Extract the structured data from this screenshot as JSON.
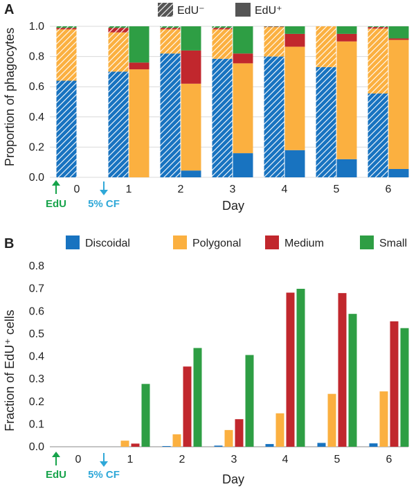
{
  "colors": {
    "discoidal": "#1873c0",
    "polygonal": "#fbb040",
    "medium": "#c1272d",
    "small": "#2e9e44",
    "grid": "#d9d9d9",
    "edu_marker": "#16a34a",
    "cf_marker": "#2fa8d8"
  },
  "markers": {
    "edu": "EdU",
    "cf": "5% CF"
  },
  "chart_data": [
    {
      "panel": "A",
      "type": "bar",
      "stacked": true,
      "ylabel": "Proportion of phagocytes",
      "xlabel": "Day",
      "ylim": [
        0,
        1.0
      ],
      "yticks": [
        "0.0",
        "0.2",
        "0.4",
        "0.6",
        "0.8",
        "1.0"
      ],
      "grid": true,
      "categories": [
        "0",
        "1",
        "2",
        "3",
        "4",
        "5",
        "6"
      ],
      "legend": [
        {
          "key": "neg",
          "label": "EdU⁻",
          "pattern": "hatched"
        },
        {
          "key": "pos",
          "label": "EdU⁺",
          "pattern": "solid"
        }
      ],
      "segments": [
        "discoidal",
        "polygonal",
        "medium",
        "small"
      ],
      "edu_neg": [
        [
          0.64,
          0.34,
          0.01,
          0.01
        ],
        [
          0.7,
          0.26,
          0.03,
          0.01
        ],
        [
          0.82,
          0.16,
          0.01,
          0.01
        ],
        [
          0.785,
          0.195,
          0.01,
          0.01
        ],
        [
          0.8,
          0.195,
          0.003,
          0.002
        ],
        [
          0.73,
          0.27,
          0.0,
          0.0
        ],
        [
          0.555,
          0.43,
          0.01,
          0.005
        ]
      ],
      "edu_pos": [
        null,
        [
          0.0,
          0.715,
          0.045,
          0.24
        ],
        [
          0.045,
          0.575,
          0.22,
          0.16
        ],
        [
          0.16,
          0.595,
          0.065,
          0.18
        ],
        [
          0.18,
          0.685,
          0.085,
          0.05
        ],
        [
          0.12,
          0.78,
          0.05,
          0.05
        ],
        [
          0.055,
          0.855,
          0.01,
          0.08
        ]
      ]
    },
    {
      "panel": "B",
      "type": "bar",
      "ylabel": "Fraction of EdU⁺ cells",
      "xlabel": "Day",
      "ylim": [
        0,
        0.8
      ],
      "yticks": [
        "0.0",
        "0.1",
        "0.2",
        "0.3",
        "0.4",
        "0.5",
        "0.6",
        "0.7",
        "0.8"
      ],
      "grid": false,
      "categories": [
        "0",
        "1",
        "2",
        "3",
        "4",
        "5",
        "6"
      ],
      "series": [
        {
          "name": "Discoidal",
          "key": "discoidal",
          "values": [
            0,
            0.0,
            0.003,
            0.005,
            0.012,
            0.017,
            0.015
          ]
        },
        {
          "name": "Polygonal",
          "key": "polygonal",
          "values": [
            0,
            0.027,
            0.055,
            0.074,
            0.148,
            0.234,
            0.245
          ]
        },
        {
          "name": "Medium",
          "key": "medium",
          "values": [
            0,
            0.014,
            0.355,
            0.122,
            0.682,
            0.68,
            0.555
          ]
        },
        {
          "name": "Small",
          "key": "small",
          "values": [
            0,
            0.278,
            0.437,
            0.406,
            0.699,
            0.588,
            0.525
          ]
        }
      ]
    }
  ]
}
